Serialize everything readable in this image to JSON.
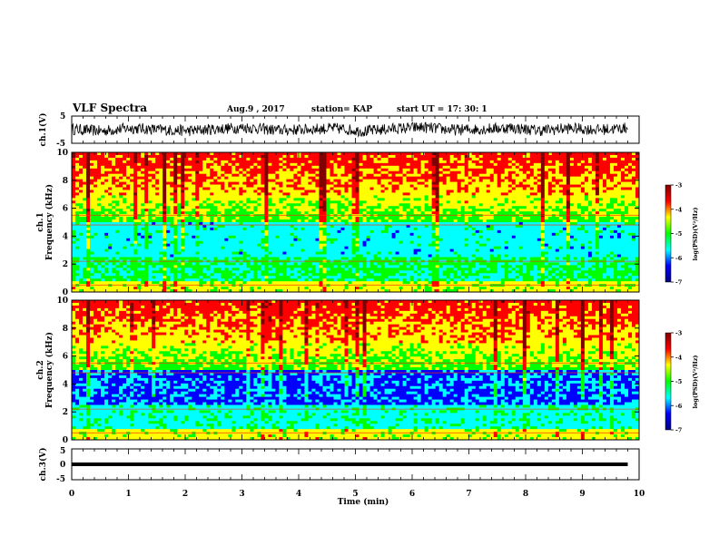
{
  "header": {
    "title": "VLF Spectra",
    "date": "Aug.9 , 2017",
    "station": "station= KAP",
    "start_time": "start UT = 17: 30: 1"
  },
  "chart_data": [
    {
      "name": "ch1-waveform",
      "type": "line",
      "ylabel": "ch.1(V)",
      "ylim": [
        -5,
        5
      ],
      "yticks": [
        "5",
        "-5"
      ],
      "xlim": [
        0,
        10
      ],
      "x_extent_min": [
        0,
        9.8
      ],
      "description_level": [
        0.2,
        -0.5,
        0.6,
        0.0,
        -0.4,
        0.3,
        0.8,
        -0.2,
        0.1,
        0.5,
        -0.6,
        0.4,
        0.9,
        -0.1,
        0.2,
        0.7,
        -0.3,
        0.5,
        0.0,
        0.6
      ]
    },
    {
      "name": "ch1-spectrogram",
      "type": "heatmap",
      "ylabel": "Frequency (kHz)",
      "channel_label": "ch.1",
      "ylim": [
        0,
        10
      ],
      "yticks": [
        "0",
        "2",
        "4",
        "6",
        "8",
        "10"
      ],
      "xlim": [
        0,
        10
      ],
      "colorbar": {
        "label": "log(PSD)(V²/Hz)",
        "range": [
          -7,
          -3
        ],
        "ticks": [
          "-3",
          "-4",
          "-5",
          "-6",
          "-7"
        ]
      }
    },
    {
      "name": "ch2-spectrogram",
      "type": "heatmap",
      "ylabel": "Frequency (kHz)",
      "channel_label": "ch.2",
      "ylim": [
        0,
        10
      ],
      "yticks": [
        "0",
        "2",
        "4",
        "6",
        "8",
        "10"
      ],
      "xlim": [
        0,
        10
      ],
      "colorbar": {
        "label": "log(PSD)(V²/Hz)",
        "range": [
          -7,
          -3
        ],
        "ticks": [
          "-3",
          "-4",
          "-5",
          "-6",
          "-7"
        ]
      }
    },
    {
      "name": "ch3-waveform",
      "type": "line",
      "ylabel": "ch.3(V)",
      "ylim": [
        -5,
        5
      ],
      "yticks": [
        "5",
        "0",
        "-5"
      ],
      "xlim": [
        0,
        10
      ],
      "x_extent_min": [
        0,
        9.8
      ],
      "level_v": 0
    }
  ],
  "x_axis": {
    "label": "Time (min)",
    "ticks": [
      "0",
      "1",
      "2",
      "3",
      "4",
      "5",
      "6",
      "7",
      "8",
      "9",
      "10"
    ]
  },
  "colors": {
    "colormap": [
      "#000080",
      "#0000ff",
      "#00ffff",
      "#00ff00",
      "#ffff00",
      "#ff0000",
      "#800000"
    ]
  }
}
